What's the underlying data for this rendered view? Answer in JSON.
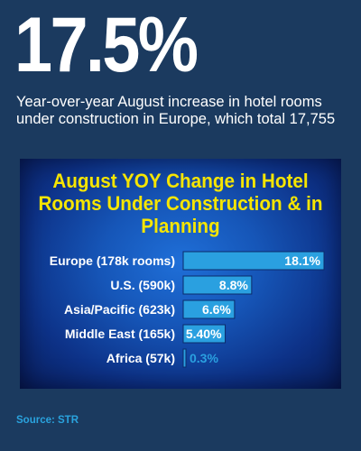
{
  "headline": {
    "stat": "17.5%",
    "description": "Year-over-year August increase in hotel rooms under construction in Europe, which total 17,755"
  },
  "chart_data": {
    "type": "bar",
    "orientation": "horizontal",
    "title": "August YOY Change in Hotel Rooms Under Construction & in Planning",
    "categories": [
      "Europe (178k rooms)",
      "U.S. (590k)",
      "Asia/Pacific (623k)",
      "Middle East (165k)",
      "Africa (57k)"
    ],
    "values": [
      18.1,
      8.8,
      6.6,
      5.4,
      0.3
    ],
    "value_labels": [
      "18.1%",
      "8.8%",
      "6.6%",
      "5.40%",
      "0.3%"
    ],
    "xlim": [
      0,
      18.1
    ],
    "grid": false,
    "legend": "none",
    "colors": {
      "bar": "#2aa0e0",
      "bar_stroke": "#0b2a6a",
      "title": "#f6e500",
      "label": "#ffffff"
    }
  },
  "source": "Source: STR"
}
